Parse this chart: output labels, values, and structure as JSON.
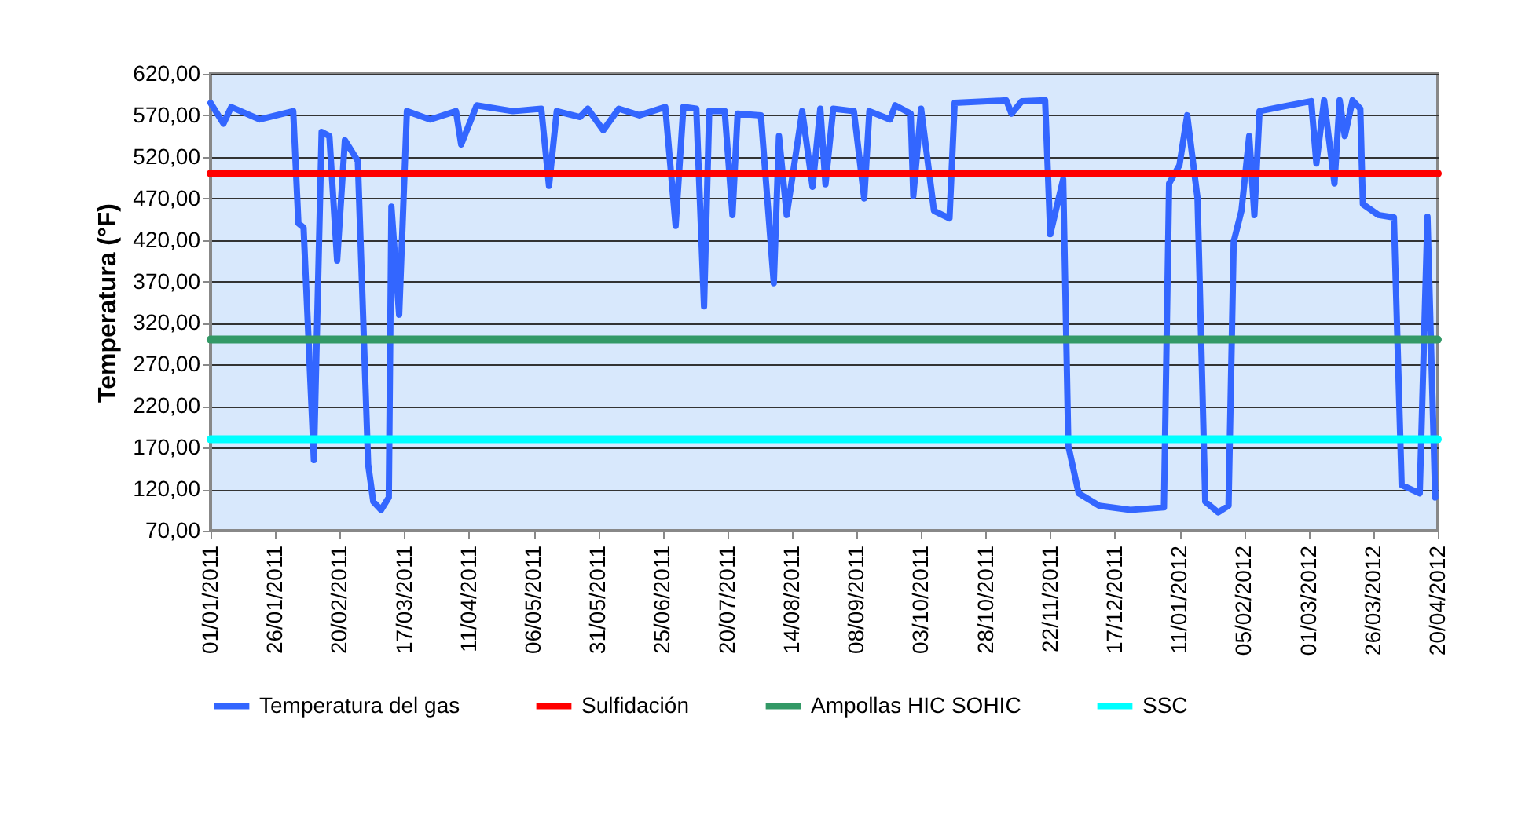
{
  "chart_data": {
    "type": "line",
    "ylabel": "Temperatura (°F)",
    "legend": "bottom",
    "grid": "y",
    "line_style": "solid",
    "marker": "none",
    "xlim": [
      "2011-01-01",
      "2012-04-20"
    ],
    "xticks": [
      {
        "value": "2011-01-01",
        "label": "01/01/2011"
      },
      {
        "value": "2011-01-26",
        "label": "26/01/2011"
      },
      {
        "value": "2011-02-20",
        "label": "20/02/2011"
      },
      {
        "value": "2011-03-17",
        "label": "17/03/2011"
      },
      {
        "value": "2011-04-11",
        "label": "11/04/2011"
      },
      {
        "value": "2011-05-06",
        "label": "06/05/2011"
      },
      {
        "value": "2011-05-31",
        "label": "31/05/2011"
      },
      {
        "value": "2011-06-25",
        "label": "25/06/2011"
      },
      {
        "value": "2011-07-20",
        "label": "20/07/2011"
      },
      {
        "value": "2011-08-14",
        "label": "14/08/2011"
      },
      {
        "value": "2011-09-08",
        "label": "08/09/2011"
      },
      {
        "value": "2011-10-03",
        "label": "03/10/2011"
      },
      {
        "value": "2011-10-28",
        "label": "28/10/2011"
      },
      {
        "value": "2011-11-22",
        "label": "22/11/2011"
      },
      {
        "value": "2011-12-17",
        "label": "17/12/2011"
      },
      {
        "value": "2012-01-11",
        "label": "11/01/2012"
      },
      {
        "value": "2012-02-05",
        "label": "05/02/2012"
      },
      {
        "value": "2012-03-01",
        "label": "01/03/2012"
      },
      {
        "value": "2012-03-26",
        "label": "26/03/2012"
      },
      {
        "value": "2012-04-20",
        "label": "20/04/2012"
      }
    ],
    "ylim": [
      70,
      620
    ],
    "yticks": [
      {
        "value": 70,
        "label": "70,00"
      },
      {
        "value": 120,
        "label": "120,00"
      },
      {
        "value": 170,
        "label": "170,00"
      },
      {
        "value": 220,
        "label": "220,00"
      },
      {
        "value": 270,
        "label": "270,00"
      },
      {
        "value": 320,
        "label": "320,00"
      },
      {
        "value": 370,
        "label": "370,00"
      },
      {
        "value": 420,
        "label": "420,00"
      },
      {
        "value": 470,
        "label": "470,00"
      },
      {
        "value": 520,
        "label": "520,00"
      },
      {
        "value": 570,
        "label": "570,00"
      },
      {
        "value": 620,
        "label": "620,00"
      }
    ],
    "series": [
      {
        "name": "Temperatura del gas",
        "color": "#3366ff",
        "x": [
          "2011-01-01",
          "2011-01-06",
          "2011-01-09",
          "2011-01-20",
          "2011-02-02",
          "2011-02-04",
          "2011-02-06",
          "2011-02-10",
          "2011-02-13",
          "2011-02-16",
          "2011-02-19",
          "2011-02-22",
          "2011-02-27",
          "2011-03-03",
          "2011-03-05",
          "2011-03-08",
          "2011-03-11",
          "2011-03-12",
          "2011-03-15",
          "2011-03-18",
          "2011-03-27",
          "2011-04-06",
          "2011-04-08",
          "2011-04-14",
          "2011-04-28",
          "2011-05-09",
          "2011-05-12",
          "2011-05-15",
          "2011-05-24",
          "2011-05-27",
          "2011-06-02",
          "2011-06-08",
          "2011-06-16",
          "2011-06-26",
          "2011-06-30",
          "2011-07-03",
          "2011-07-08",
          "2011-07-11",
          "2011-07-13",
          "2011-07-19",
          "2011-07-22",
          "2011-07-24",
          "2011-08-02",
          "2011-08-07",
          "2011-08-09",
          "2011-08-12",
          "2011-08-18",
          "2011-08-22",
          "2011-08-25",
          "2011-08-27",
          "2011-08-30",
          "2011-09-07",
          "2011-09-11",
          "2011-09-13",
          "2011-09-21",
          "2011-09-23",
          "2011-09-29",
          "2011-09-30",
          "2011-10-03",
          "2011-10-08",
          "2011-10-14",
          "2011-10-16",
          "2011-11-05",
          "2011-11-07",
          "2011-11-11",
          "2011-11-20",
          "2011-11-22",
          "2011-11-27",
          "2011-11-29",
          "2011-12-03",
          "2011-12-11",
          "2011-12-23",
          "2012-01-05",
          "2012-01-07",
          "2012-01-11",
          "2012-01-14",
          "2012-01-18",
          "2012-01-21",
          "2012-01-26",
          "2012-01-30",
          "2012-02-01",
          "2012-02-04",
          "2012-02-07",
          "2012-02-09",
          "2012-02-11",
          "2012-02-19",
          "2012-03-02",
          "2012-03-04",
          "2012-03-07",
          "2012-03-11",
          "2012-03-13",
          "2012-03-15",
          "2012-03-18",
          "2012-03-21",
          "2012-03-22",
          "2012-03-28",
          "2012-04-03",
          "2012-04-06",
          "2012-04-13",
          "2012-04-16",
          "2012-04-19"
        ],
        "values": [
          585,
          560,
          580,
          565,
          575,
          440,
          435,
          155,
          550,
          545,
          395,
          540,
          515,
          150,
          105,
          95,
          110,
          460,
          330,
          575,
          565,
          575,
          535,
          582,
          575,
          578,
          485,
          575,
          568,
          578,
          552,
          578,
          570,
          580,
          437,
          580,
          578,
          340,
          575,
          575,
          450,
          572,
          570,
          368,
          545,
          450,
          575,
          484,
          578,
          487,
          578,
          575,
          470,
          575,
          565,
          582,
          572,
          473,
          578,
          455,
          446,
          585,
          588,
          572,
          587,
          588,
          427,
          493,
          172,
          115,
          100,
          95,
          98,
          488,
          510,
          570,
          470,
          105,
          92,
          100,
          418,
          455,
          545,
          450,
          575,
          580,
          587,
          512,
          588,
          488,
          588,
          545,
          588,
          578,
          463,
          450,
          447,
          125,
          115,
          448,
          110
        ]
      },
      {
        "name": "Sulfidación",
        "color": "#ff0000",
        "x": [
          "2011-01-01",
          "2012-04-20"
        ],
        "values": [
          500,
          500
        ]
      },
      {
        "name": "Ampollas HIC SOHIC",
        "color": "#339966",
        "x": [
          "2011-01-01",
          "2012-04-20"
        ],
        "values": [
          300,
          300
        ]
      },
      {
        "name": "SSC",
        "color": "#00ffff",
        "x": [
          "2011-01-01",
          "2012-04-20"
        ],
        "values": [
          180,
          180
        ]
      }
    ]
  }
}
